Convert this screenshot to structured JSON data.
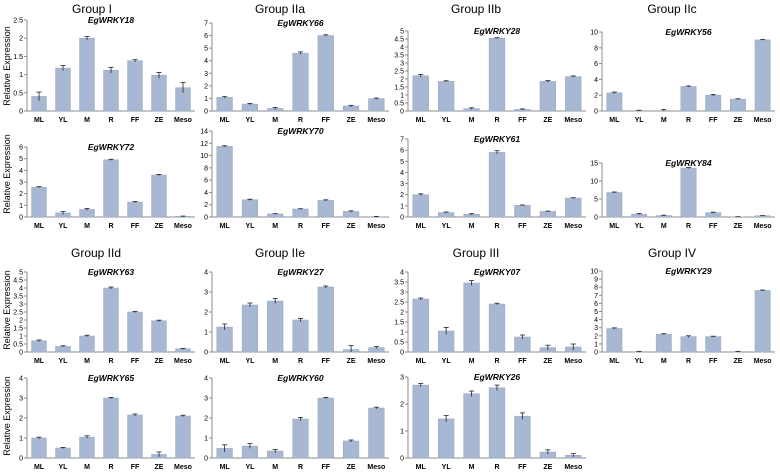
{
  "categories": [
    "ML",
    "YL",
    "M",
    "R",
    "FF",
    "ZE",
    "Meso"
  ],
  "bar_color": "#a9b8d2",
  "axis_color": "#8c8c8c",
  "group_titles": [
    "Group I",
    "Group IIa",
    "Group IIb",
    "Group IIc",
    "Group IId",
    "Group IIe",
    "Group III",
    "Group IV"
  ],
  "y_label": "Relative Expression",
  "chart_data": [
    {
      "type": "bar",
      "title": "EgWRKY18",
      "ylim": [
        0,
        2.5
      ],
      "ticks": [
        0,
        0.5,
        1,
        1.5,
        2,
        2.5
      ],
      "categories": [
        "ML",
        "YL",
        "M",
        "R",
        "FF",
        "ZE",
        "Meso"
      ],
      "values": [
        0.4,
        1.18,
        2.0,
        1.12,
        1.38,
        0.98,
        0.64
      ],
      "errors": [
        0.12,
        0.07,
        0.05,
        0.08,
        0.03,
        0.08,
        0.14
      ]
    },
    {
      "type": "bar",
      "title": "EgWRKY66",
      "ylim": [
        0,
        7
      ],
      "ticks": [
        0,
        1,
        2,
        3,
        4,
        5,
        6,
        7
      ],
      "categories": [
        "ML",
        "YL",
        "M",
        "R",
        "FF",
        "ZE",
        "Meso"
      ],
      "values": [
        1.08,
        0.55,
        0.2,
        4.6,
        6.0,
        0.4,
        0.98
      ],
      "errors": [
        0.06,
        0.05,
        0.08,
        0.1,
        0.06,
        0.05,
        0.05
      ]
    },
    {
      "type": "bar",
      "title": "EgWRKY28",
      "ylim": [
        0,
        5
      ],
      "ticks": [
        0,
        0.5,
        1,
        1.5,
        2,
        2.5,
        3,
        3.5,
        4,
        4.5,
        5
      ],
      "categories": [
        "ML",
        "YL",
        "M",
        "R",
        "FF",
        "ZE",
        "Meso"
      ],
      "values": [
        2.2,
        1.85,
        0.15,
        4.55,
        0.1,
        1.85,
        2.15
      ],
      "errors": [
        0.08,
        0.04,
        0.05,
        0.03,
        0.03,
        0.05,
        0.04
      ]
    },
    {
      "type": "bar",
      "title": "EgWRKY56",
      "ylim": [
        0,
        10
      ],
      "ticks": [
        0,
        2,
        4,
        6,
        8,
        10
      ],
      "categories": [
        "ML",
        "YL",
        "M",
        "R",
        "FF",
        "ZE",
        "Meso"
      ],
      "values": [
        2.3,
        0.05,
        0.0,
        3.1,
        2.0,
        1.5,
        9.0
      ],
      "errors": [
        0.1,
        0.05,
        0.2,
        0.07,
        0.1,
        0.05,
        0.05
      ]
    },
    {
      "type": "bar",
      "title": "EgWRKY72",
      "ylim": [
        0,
        6
      ],
      "ticks": [
        0,
        1,
        2,
        3,
        4,
        5,
        6
      ],
      "categories": [
        "ML",
        "YL",
        "M",
        "R",
        "FF",
        "ZE",
        "Meso"
      ],
      "values": [
        2.55,
        0.35,
        0.65,
        4.9,
        1.28,
        3.6,
        0.05
      ],
      "errors": [
        0.05,
        0.12,
        0.08,
        0.05,
        0.05,
        0.05,
        0.03
      ]
    },
    {
      "type": "bar",
      "title": "EgWRKY70",
      "ylim": [
        0,
        14
      ],
      "ticks": [
        0,
        2,
        4,
        6,
        8,
        10,
        12,
        14
      ],
      "categories": [
        "ML",
        "YL",
        "M",
        "R",
        "FF",
        "ZE",
        "Meso"
      ],
      "values": [
        11.5,
        2.8,
        0.5,
        1.3,
        2.7,
        0.9,
        0.05
      ],
      "errors": [
        0.1,
        0.1,
        0.05,
        0.05,
        0.1,
        0.1,
        0.05
      ]
    },
    {
      "type": "bar",
      "title": "EgWRKY61",
      "ylim": [
        0,
        7
      ],
      "ticks": [
        0,
        1,
        2,
        3,
        4,
        5,
        6,
        7
      ],
      "categories": [
        "ML",
        "YL",
        "M",
        "R",
        "FF",
        "ZE",
        "Meso"
      ],
      "values": [
        2.0,
        0.4,
        0.25,
        5.8,
        1.05,
        0.5,
        1.7
      ],
      "errors": [
        0.08,
        0.05,
        0.05,
        0.15,
        0.03,
        0.03,
        0.03
      ]
    },
    {
      "type": "bar",
      "title": "EgWRKY84",
      "ylim": [
        0,
        15
      ],
      "ticks": [
        0,
        5,
        10,
        15
      ],
      "categories": [
        "ML",
        "YL",
        "M",
        "R",
        "FF",
        "ZE",
        "Meso"
      ],
      "values": [
        6.8,
        0.8,
        0.4,
        13.6,
        1.2,
        0.05,
        0.35
      ],
      "errors": [
        0.15,
        0.15,
        0.1,
        0.12,
        0.15,
        0.03,
        0.05
      ]
    },
    {
      "type": "bar",
      "title": "EgWRKY63",
      "ylim": [
        0,
        5
      ],
      "ticks": [
        0,
        0.5,
        1,
        1.5,
        2,
        2.5,
        3,
        3.5,
        4,
        4.5,
        5
      ],
      "categories": [
        "ML",
        "YL",
        "M",
        "R",
        "FF",
        "ZE",
        "Meso"
      ],
      "values": [
        0.7,
        0.35,
        1.0,
        4.0,
        2.5,
        1.95,
        0.2
      ],
      "errors": [
        0.05,
        0.04,
        0.05,
        0.06,
        0.04,
        0.04,
        0.03
      ]
    },
    {
      "type": "bar",
      "title": "EgWRKY27",
      "ylim": [
        0,
        4
      ],
      "ticks": [
        0,
        1,
        2,
        3,
        4
      ],
      "categories": [
        "ML",
        "YL",
        "M",
        "R",
        "FF",
        "ZE",
        "Meso"
      ],
      "values": [
        1.25,
        2.35,
        2.55,
        1.6,
        3.25,
        0.12,
        0.22
      ],
      "errors": [
        0.15,
        0.1,
        0.12,
        0.08,
        0.05,
        0.2,
        0.05
      ]
    },
    {
      "type": "bar",
      "title": "EgWRKY07",
      "ylim": [
        0,
        4
      ],
      "ticks": [
        0,
        0.5,
        1,
        1.5,
        2,
        2.5,
        3,
        3.5,
        4
      ],
      "categories": [
        "ML",
        "YL",
        "M",
        "R",
        "FF",
        "ZE",
        "Meso"
      ],
      "values": [
        2.65,
        1.05,
        3.45,
        2.4,
        0.75,
        0.22,
        0.25
      ],
      "errors": [
        0.05,
        0.18,
        0.12,
        0.04,
        0.1,
        0.12,
        0.15
      ]
    },
    {
      "type": "bar",
      "title": "EgWRKY29",
      "ylim": [
        0,
        10
      ],
      "ticks": [
        0,
        1,
        2,
        3,
        4,
        5,
        6,
        7,
        8,
        9,
        10
      ],
      "categories": [
        "ML",
        "YL",
        "M",
        "R",
        "FF",
        "ZE",
        "Meso"
      ],
      "values": [
        2.9,
        0.05,
        2.2,
        1.9,
        1.9,
        0.05,
        7.6
      ],
      "errors": [
        0.08,
        0.03,
        0.06,
        0.1,
        0.05,
        0.03,
        0.05
      ]
    },
    {
      "type": "bar",
      "title": "EgWRKY65",
      "ylim": [
        0,
        4
      ],
      "ticks": [
        0,
        1,
        2,
        3,
        4
      ],
      "categories": [
        "ML",
        "YL",
        "M",
        "R",
        "FF",
        "ZE",
        "Meso"
      ],
      "values": [
        1.0,
        0.5,
        1.05,
        3.0,
        2.15,
        0.18,
        2.1
      ],
      "errors": [
        0.04,
        0.03,
        0.06,
        0.03,
        0.05,
        0.12,
        0.04
      ]
    },
    {
      "type": "bar",
      "title": "EgWRKY60",
      "ylim": [
        0,
        4
      ],
      "ticks": [
        0,
        1,
        2,
        3,
        4
      ],
      "categories": [
        "ML",
        "YL",
        "M",
        "R",
        "FF",
        "ZE",
        "Meso"
      ],
      "values": [
        0.48,
        0.6,
        0.35,
        1.95,
        3.0,
        0.85,
        2.5
      ],
      "errors": [
        0.18,
        0.12,
        0.08,
        0.08,
        0.03,
        0.05,
        0.04
      ]
    },
    {
      "type": "bar",
      "title": "EgWRKY26",
      "ylim": [
        0,
        3
      ],
      "ticks": [
        0,
        1,
        2,
        3
      ],
      "categories": [
        "ML",
        "YL",
        "M",
        "R",
        "FF",
        "ZE",
        "Meso"
      ],
      "values": [
        2.7,
        1.45,
        2.38,
        2.6,
        1.55,
        0.22,
        0.1
      ],
      "errors": [
        0.06,
        0.12,
        0.1,
        0.1,
        0.12,
        0.08,
        0.06
      ]
    }
  ]
}
